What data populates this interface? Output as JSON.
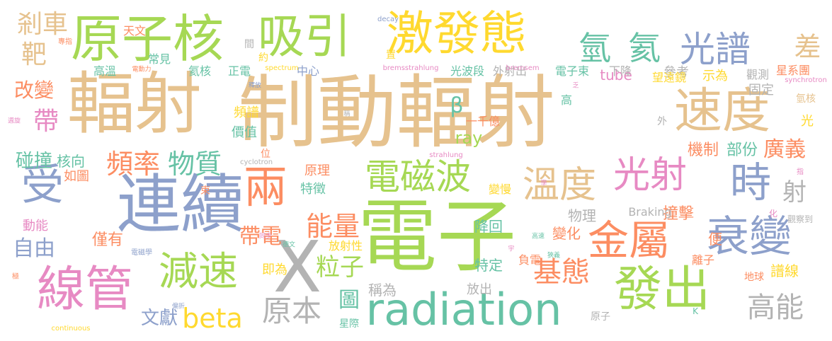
{
  "palette": {
    "tan": "#e6c28e",
    "green": "#a6d854",
    "blue": "#8da0cb",
    "orange": "#fc8d62",
    "teal": "#66c2a5",
    "pink": "#e78ac3",
    "yellow": "#ffd92f",
    "gray": "#b3b3b3"
  },
  "words": [
    {
      "text": "制動輻射",
      "color": "tan"
    },
    {
      "text": "電子",
      "color": "green"
    },
    {
      "text": "輻射",
      "color": "tan"
    },
    {
      "text": "連續",
      "color": "blue"
    },
    {
      "text": "原子核",
      "color": "green"
    },
    {
      "text": "吸引",
      "color": "green"
    },
    {
      "text": "激發態",
      "color": "yellow"
    },
    {
      "text": "速度",
      "color": "tan"
    },
    {
      "text": "X",
      "color": "gray"
    },
    {
      "text": "radiation",
      "color": "teal"
    },
    {
      "text": "線管",
      "color": "pink"
    },
    {
      "text": "發出",
      "color": "green"
    },
    {
      "text": "衰變",
      "color": "blue"
    },
    {
      "text": "金屬",
      "color": "orange"
    },
    {
      "text": "電磁波",
      "color": "green"
    },
    {
      "text": "溫度",
      "color": "tan"
    },
    {
      "text": "光射",
      "color": "pink"
    },
    {
      "text": "時",
      "color": "blue"
    },
    {
      "text": "受",
      "color": "blue"
    },
    {
      "text": "兩",
      "color": "orange"
    },
    {
      "text": "減速",
      "color": "green"
    },
    {
      "text": "光譜",
      "color": "blue"
    },
    {
      "text": "氫",
      "color": "teal"
    },
    {
      "text": "氦",
      "color": "teal"
    },
    {
      "text": "剎車",
      "color": "tan"
    },
    {
      "text": "靶",
      "color": "tan"
    },
    {
      "text": "差",
      "color": "tan"
    },
    {
      "text": "頻率",
      "color": "orange"
    },
    {
      "text": "物質",
      "color": "teal"
    },
    {
      "text": "帶",
      "color": "pink"
    },
    {
      "text": "改變",
      "color": "orange"
    },
    {
      "text": "碰撞",
      "color": "teal"
    },
    {
      "text": "核向",
      "color": "teal"
    },
    {
      "text": "自由",
      "color": "blue"
    },
    {
      "text": "僅有",
      "color": "orange"
    },
    {
      "text": "動能",
      "color": "pink"
    },
    {
      "text": "如圖",
      "color": "orange"
    },
    {
      "text": "高能",
      "color": "gray"
    },
    {
      "text": "基態",
      "color": "orange"
    },
    {
      "text": "原本",
      "color": "gray"
    },
    {
      "text": "beta",
      "color": "yellow"
    },
    {
      "text": "文獻",
      "color": "blue"
    },
    {
      "text": "圖",
      "color": "teal"
    },
    {
      "text": "能量",
      "color": "orange"
    },
    {
      "text": "粒子",
      "color": "green"
    },
    {
      "text": "帶電",
      "color": "orange"
    },
    {
      "text": "β",
      "color": "teal"
    },
    {
      "text": "ray",
      "color": "green"
    },
    {
      "text": "機制",
      "color": "orange"
    },
    {
      "text": "部份",
      "color": "teal"
    },
    {
      "text": "廣義",
      "color": "orange"
    },
    {
      "text": "射",
      "color": "gray"
    },
    {
      "text": "物理",
      "color": "gray"
    },
    {
      "text": "撞擊",
      "color": "orange"
    },
    {
      "text": "變化",
      "color": "orange"
    },
    {
      "text": "便",
      "color": "orange"
    },
    {
      "text": "譜線",
      "color": "yellow"
    },
    {
      "text": "地球",
      "color": "orange"
    },
    {
      "text": "離子",
      "color": "orange"
    },
    {
      "text": "負電",
      "color": "orange"
    },
    {
      "text": "放出",
      "color": "gray"
    },
    {
      "text": "特定",
      "color": "teal"
    },
    {
      "text": "降回",
      "color": "teal"
    },
    {
      "text": "放射性",
      "color": "yellow"
    },
    {
      "text": "稱為",
      "color": "gray"
    },
    {
      "text": "即為",
      "color": "yellow"
    },
    {
      "text": "原理",
      "color": "orange"
    },
    {
      "text": "特徵",
      "color": "teal"
    },
    {
      "text": "一千億",
      "color": "orange"
    },
    {
      "text": "變慢",
      "color": "yellow"
    },
    {
      "text": "tube",
      "color": "pink"
    },
    {
      "text": "示為",
      "color": "yellow"
    },
    {
      "text": "參考",
      "color": "gray"
    },
    {
      "text": "觀測",
      "color": "gray"
    },
    {
      "text": "星系團",
      "color": "orange"
    },
    {
      "text": "電子束",
      "color": "teal"
    },
    {
      "text": "望遠鏡",
      "color": "yellow"
    },
    {
      "text": "固定",
      "color": "gray"
    },
    {
      "text": "下降",
      "color": "gray"
    },
    {
      "text": "外射出",
      "color": "gray"
    },
    {
      "text": "光波段",
      "color": "teal"
    },
    {
      "text": "中心",
      "color": "blue"
    },
    {
      "text": "正電",
      "color": "teal"
    },
    {
      "text": "氦核",
      "color": "teal"
    },
    {
      "text": "高溫",
      "color": "teal"
    },
    {
      "text": "天文",
      "color": "orange"
    },
    {
      "text": "常見",
      "color": "teal"
    },
    {
      "text": "頻譜",
      "color": "yellow"
    },
    {
      "text": "價值",
      "color": "teal"
    },
    {
      "text": "Braking",
      "color": "gray"
    },
    {
      "text": "光",
      "color": "yellow"
    },
    {
      "text": "氫核",
      "color": "tan"
    },
    {
      "text": "高",
      "color": "teal"
    },
    {
      "text": "外",
      "color": "gray"
    },
    {
      "text": "間",
      "color": "gray"
    },
    {
      "text": "約",
      "color": "yellow"
    },
    {
      "text": "置",
      "color": "yellow"
    },
    {
      "text": "位",
      "color": "orange"
    },
    {
      "text": "束",
      "color": "orange"
    },
    {
      "text": "原子",
      "color": "gray"
    },
    {
      "text": "星際",
      "color": "teal"
    },
    {
      "text": "專指",
      "color": "orange"
    },
    {
      "text": "電動力",
      "color": "orange"
    },
    {
      "text": "釋放",
      "color": "blue"
    },
    {
      "text": "spectrum",
      "color": "yellow"
    },
    {
      "text": "bremsstrahlung",
      "color": "pink"
    },
    {
      "text": "bremsem",
      "color": "pink"
    },
    {
      "text": "decay",
      "color": "blue"
    },
    {
      "text": "synchrotron",
      "color": "pink"
    },
    {
      "text": "cyclotron",
      "color": "gray"
    },
    {
      "text": "strahlung",
      "color": "pink"
    },
    {
      "text": "continuous",
      "color": "yellow"
    },
    {
      "text": "觀察到",
      "color": "gray"
    },
    {
      "text": "化",
      "color": "pink"
    },
    {
      "text": "指",
      "color": "pink"
    },
    {
      "text": "學",
      "color": "pink"
    },
    {
      "text": "稱",
      "color": "gray"
    },
    {
      "text": "乏",
      "color": "pink"
    },
    {
      "text": "週旋",
      "color": "pink"
    },
    {
      "text": "極",
      "color": "orange"
    },
    {
      "text": "電磁學",
      "color": "blue"
    },
    {
      "text": "偏折",
      "color": "blue"
    },
    {
      "text": "同步",
      "color": "pink"
    },
    {
      "text": "德文",
      "color": "teal"
    },
    {
      "text": "高速",
      "color": "teal"
    },
    {
      "text": "狹義",
      "color": "teal"
    },
    {
      "text": "宇",
      "color": "pink"
    },
    {
      "text": "K",
      "color": "teal"
    }
  ]
}
